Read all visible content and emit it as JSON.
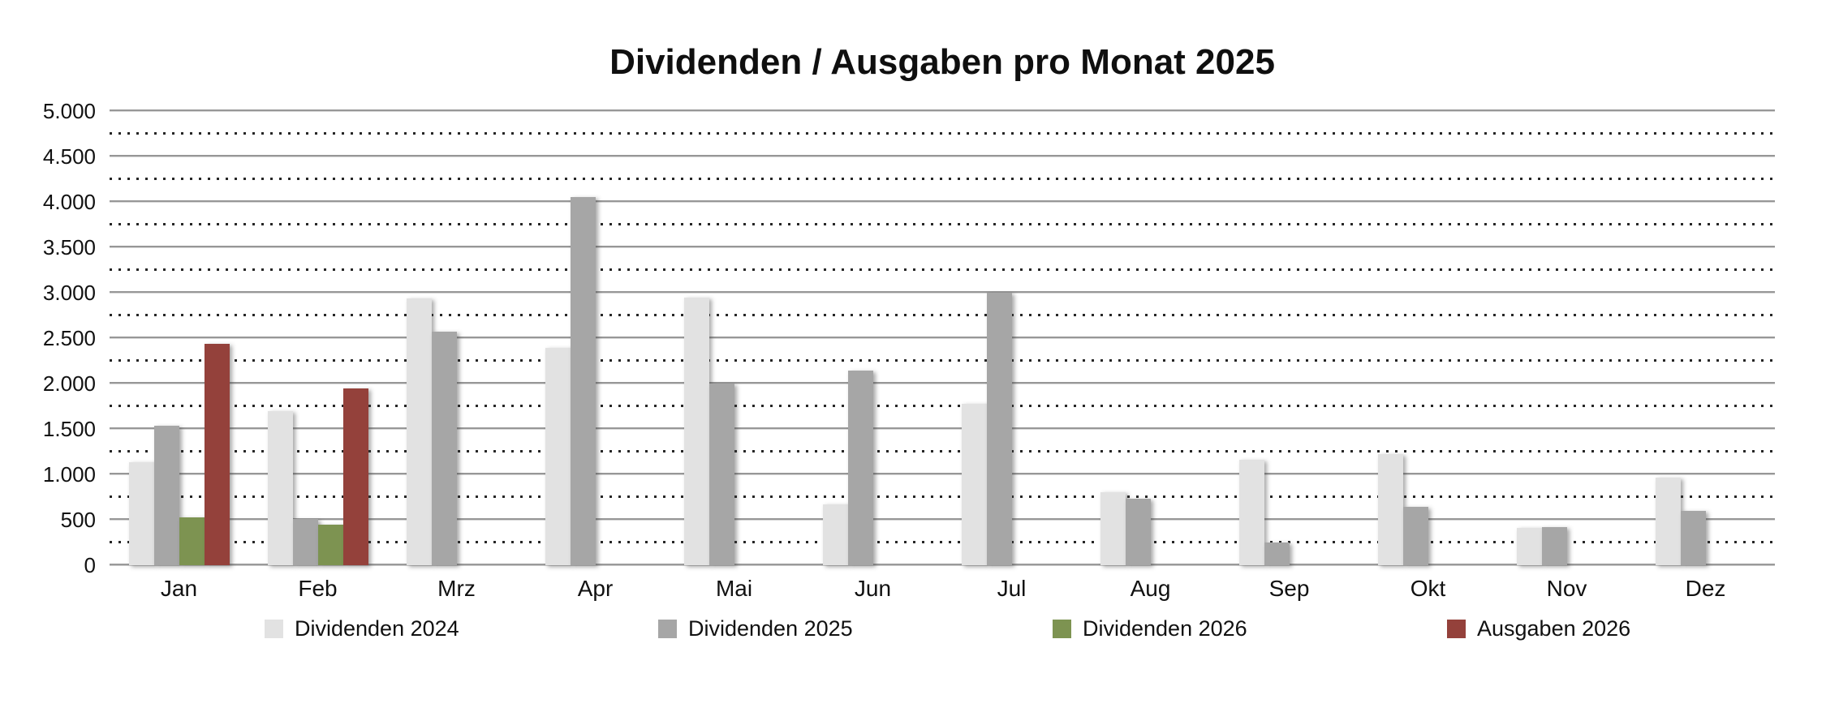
{
  "chart_data": {
    "type": "bar",
    "title": "Dividenden / Ausgaben pro Monat 2025",
    "categories": [
      "Jan",
      "Feb",
      "Mrz",
      "Apr",
      "Mai",
      "Jun",
      "Jul",
      "Aug",
      "Sep",
      "Okt",
      "Nov",
      "Dez"
    ],
    "series": [
      {
        "name": "Dividenden 2024",
        "color": "#e2e2e2",
        "values": [
          1130,
          1700,
          2940,
          2390,
          2950,
          670,
          1780,
          800,
          1160,
          1220,
          410,
          960
        ]
      },
      {
        "name": "Dividenden 2025",
        "color": "#a6a6a6",
        "values": [
          1540,
          510,
          2570,
          4050,
          2000,
          2140,
          3000,
          730,
          250,
          640,
          420,
          600
        ]
      },
      {
        "name": "Dividenden 2026",
        "color": "#7d9351",
        "values": [
          530,
          450,
          0,
          0,
          0,
          0,
          0,
          0,
          0,
          0,
          0,
          0
        ]
      },
      {
        "name": "Ausgaben 2026",
        "color": "#94413b",
        "values": [
          2440,
          1950,
          0,
          0,
          0,
          0,
          0,
          0,
          0,
          0,
          0,
          0
        ]
      }
    ],
    "xlabel": "",
    "ylabel": "",
    "ylim": [
      0,
      5000
    ],
    "y_major_step": 500,
    "y_minor_step": 250,
    "y_tick_labels": [
      "0",
      "500",
      "1.000",
      "1.500",
      "2.000",
      "2.500",
      "3.000",
      "3.500",
      "4.000",
      "4.500",
      "5.000"
    ],
    "legend_position": "bottom",
    "grid": {
      "major": "solid",
      "minor": "dotted"
    }
  },
  "style": {
    "background": "#ffffff",
    "text_color": "#111111",
    "grid_major_color": "#979797",
    "grid_minor_color": "#262626",
    "axis_color": "#9a9a9a"
  }
}
